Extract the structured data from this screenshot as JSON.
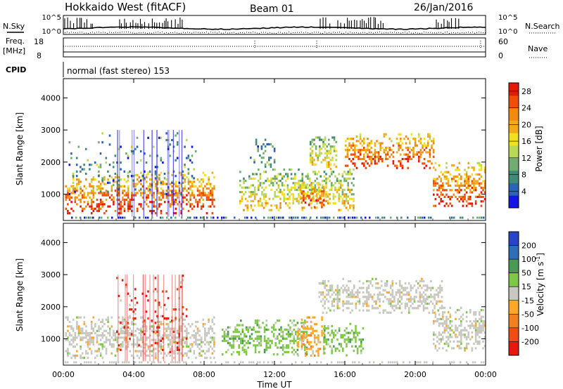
{
  "header": {
    "title": "Hokkaido West (fitACF)",
    "beam": "Beam 01",
    "date": "26/Jan/2016"
  },
  "top_panels": {
    "nsky_label": "N.Sky",
    "nsearch_label": "N.Search",
    "freq_label_1": "Freq.",
    "freq_label_2": "[MHz]",
    "nave_label": "Nave",
    "cpid_label": "CPID",
    "cpid_text": "normal (fast stereo) 153",
    "count_ticks": [
      "10^5",
      "10^0"
    ],
    "freq_ticks": [
      "18",
      "8"
    ],
    "nave_ticks": [
      "60",
      "0"
    ]
  },
  "chart_data": [
    {
      "type": "heatmap",
      "title": "",
      "xlabel": "Time UT",
      "ylabel": "Slant Range [km]",
      "xlim_hours": [
        0,
        24
      ],
      "ylim": [
        180,
        4600
      ],
      "x_ticks": [
        "00:00",
        "04:00",
        "08:00",
        "12:00",
        "16:00",
        "20:00",
        "00:00"
      ],
      "y_ticks": [
        1000,
        2000,
        3000,
        4000
      ],
      "colorbar": {
        "label": "Power [dB]",
        "ticks": [
          "4",
          "8",
          "12",
          "16",
          "20",
          "24",
          "28"
        ],
        "range": [
          0,
          30
        ],
        "colors": [
          "#1515e6",
          "#2a63b8",
          "#3f8a78",
          "#71ad6e",
          "#b8d858",
          "#f0e020",
          "#f0ac18",
          "#f28a10",
          "#f04c0a",
          "#e61808"
        ]
      },
      "echo_regions": [
        {
          "t_start": 0.1,
          "t_end": 8.6,
          "r_min": 400,
          "r_max": 1700,
          "level": "high"
        },
        {
          "t_start": 0.3,
          "t_end": 7.5,
          "r_min": 1000,
          "r_max": 3000,
          "level": "sparse"
        },
        {
          "t_start": 10.0,
          "t_end": 16.5,
          "r_min": 500,
          "r_max": 1800,
          "level": "mid"
        },
        {
          "t_start": 13.5,
          "t_end": 14.8,
          "r_min": 600,
          "r_max": 1400,
          "level": "high"
        },
        {
          "t_start": 10.6,
          "t_end": 12.0,
          "r_min": 1800,
          "r_max": 2800,
          "level": "low"
        },
        {
          "t_start": 14.0,
          "t_end": 15.5,
          "r_min": 1800,
          "r_max": 2800,
          "level": "mid"
        },
        {
          "t_start": 16.0,
          "t_end": 21.0,
          "r_min": 1800,
          "r_max": 2900,
          "level": "high"
        },
        {
          "t_start": 21.0,
          "t_end": 24.0,
          "r_min": 600,
          "r_max": 2000,
          "level": "high"
        }
      ]
    },
    {
      "type": "heatmap",
      "title": "",
      "xlabel": "Time UT",
      "ylabel": "Slant Range [km]",
      "xlim_hours": [
        0,
        24
      ],
      "ylim": [
        180,
        4600
      ],
      "x_ticks": [
        "00:00",
        "04:00",
        "08:00",
        "12:00",
        "16:00",
        "20:00",
        "00:00"
      ],
      "y_ticks": [
        1000,
        2000,
        3000,
        4000
      ],
      "colorbar": {
        "label": "Velocity [m s^-1]",
        "ticks": [
          "200",
          "100",
          "50",
          "15",
          "-15",
          "-50",
          "-100",
          "-200"
        ],
        "range": [
          -250,
          250
        ],
        "colors": [
          "#2a44c8",
          "#2f6eb4",
          "#4a9a54",
          "#7ec848",
          "#c8c8c0",
          "#ffa828",
          "#f08020",
          "#f04c14",
          "#e81810"
        ]
      },
      "echo_regions": [
        {
          "t_start": 0.1,
          "t_end": 8.6,
          "r_min": 400,
          "r_max": 1700,
          "velocity": "near-zero"
        },
        {
          "t_start": 3.0,
          "t_end": 7.0,
          "r_min": 600,
          "r_max": 3000,
          "velocity": "negative-streaks"
        },
        {
          "t_start": 9.0,
          "t_end": 13.8,
          "r_min": 500,
          "r_max": 1600,
          "velocity": "positive"
        },
        {
          "t_start": 13.3,
          "t_end": 14.8,
          "r_min": 500,
          "r_max": 1700,
          "velocity": "negative"
        },
        {
          "t_start": 14.8,
          "t_end": 17.0,
          "r_min": 500,
          "r_max": 1500,
          "velocity": "positive"
        },
        {
          "t_start": 14.5,
          "t_end": 21.5,
          "r_min": 1800,
          "r_max": 2900,
          "velocity": "near-zero"
        },
        {
          "t_start": 21.0,
          "t_end": 24.0,
          "r_min": 600,
          "r_max": 2000,
          "velocity": "near-zero"
        }
      ]
    }
  ]
}
